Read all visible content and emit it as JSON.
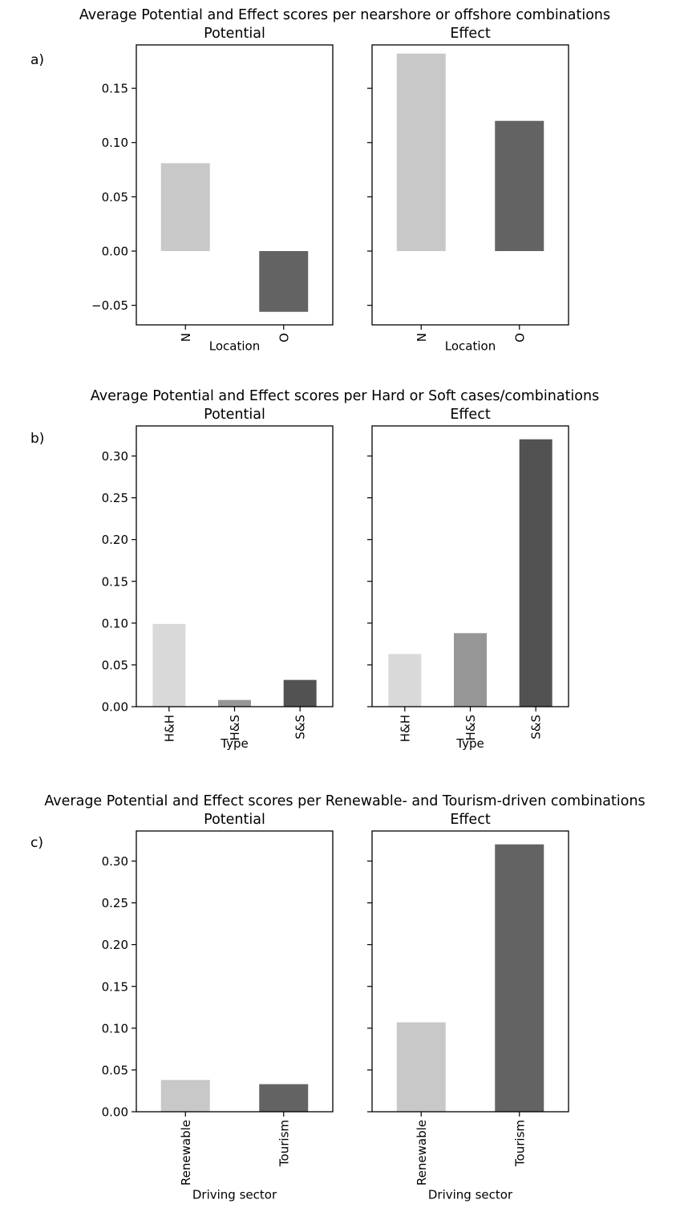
{
  "chart_data": [
    {
      "panel_label": "a)",
      "title": "Average Potential and Effect scores per nearshore or offshore combinations",
      "type": "bar",
      "ylim": [
        -0.068,
        0.19
      ],
      "yticks": [
        -0.05,
        0.0,
        0.05,
        0.1,
        0.15
      ],
      "ytick_labels": [
        "−0.05",
        "0.00",
        "0.05",
        "0.10",
        "0.15"
      ],
      "subplots": [
        {
          "title": "Potential",
          "xlabel": "Location",
          "categories": [
            "N",
            "O"
          ],
          "values": [
            0.081,
            -0.056
          ],
          "colors": [
            "#c8c8c8",
            "#636363"
          ]
        },
        {
          "title": "Effect",
          "xlabel": "Location",
          "categories": [
            "N",
            "O"
          ],
          "values": [
            0.182,
            0.12
          ],
          "colors": [
            "#c8c8c8",
            "#636363"
          ]
        }
      ]
    },
    {
      "panel_label": "b)",
      "title": "Average Potential and Effect scores per Hard or Soft cases/combinations",
      "type": "bar",
      "ylim": [
        0.0,
        0.336
      ],
      "yticks": [
        0.0,
        0.05,
        0.1,
        0.15,
        0.2,
        0.25,
        0.3
      ],
      "ytick_labels": [
        "0.00",
        "0.05",
        "0.10",
        "0.15",
        "0.20",
        "0.25",
        "0.30"
      ],
      "subplots": [
        {
          "title": "Potential",
          "xlabel": "Type",
          "categories": [
            "H&H",
            "H&S",
            "S&S"
          ],
          "values": [
            0.099,
            0.008,
            0.032
          ],
          "colors": [
            "#d9d9d9",
            "#969696",
            "#525252"
          ]
        },
        {
          "title": "Effect",
          "xlabel": "Type",
          "categories": [
            "H&H",
            "H&S",
            "S&S"
          ],
          "values": [
            0.063,
            0.088,
            0.32
          ],
          "colors": [
            "#d9d9d9",
            "#969696",
            "#525252"
          ]
        }
      ]
    },
    {
      "panel_label": "c)",
      "title": "Average Potential and Effect scores per Renewable- and Tourism-driven combinations",
      "type": "bar",
      "ylim": [
        0.0,
        0.336
      ],
      "yticks": [
        0.0,
        0.05,
        0.1,
        0.15,
        0.2,
        0.25,
        0.3
      ],
      "ytick_labels": [
        "0.00",
        "0.05",
        "0.10",
        "0.15",
        "0.20",
        "0.25",
        "0.30"
      ],
      "subplots": [
        {
          "title": "Potential",
          "xlabel": "Driving sector",
          "categories": [
            "Renewable",
            "Tourism"
          ],
          "values": [
            0.038,
            0.033
          ],
          "colors": [
            "#c8c8c8",
            "#636363"
          ]
        },
        {
          "title": "Effect",
          "xlabel": "Driving sector",
          "categories": [
            "Renewable",
            "Tourism"
          ],
          "values": [
            0.107,
            0.32
          ],
          "colors": [
            "#c8c8c8",
            "#636363"
          ]
        }
      ]
    }
  ]
}
